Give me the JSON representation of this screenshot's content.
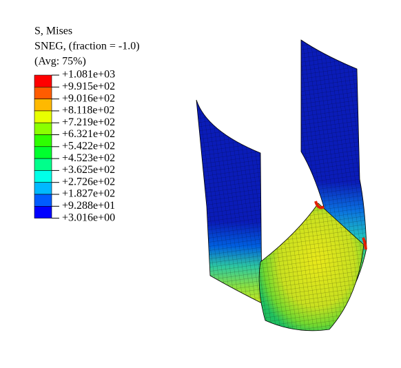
{
  "legend": {
    "title_lines": [
      "S, Mises",
      "SNEG, (fraction = -1.0)",
      "(Avg: 75%)"
    ],
    "labels": [
      "+1.081e+03",
      "+9.915e+02",
      "+9.016e+02",
      "+8.118e+02",
      "+7.219e+02",
      "+6.321e+02",
      "+5.422e+02",
      "+4.523e+02",
      "+3.625e+02",
      "+2.726e+02",
      "+1.827e+02",
      "+9.288e+01",
      "+3.016e+00"
    ],
    "colors": [
      "#ff0000",
      "#ff5c00",
      "#ffb900",
      "#e8ff00",
      "#8bff00",
      "#2eff00",
      "#00ff2e",
      "#00ff8b",
      "#00ffe8",
      "#00b9ff",
      "#005cff",
      "#0000ff"
    ]
  }
}
